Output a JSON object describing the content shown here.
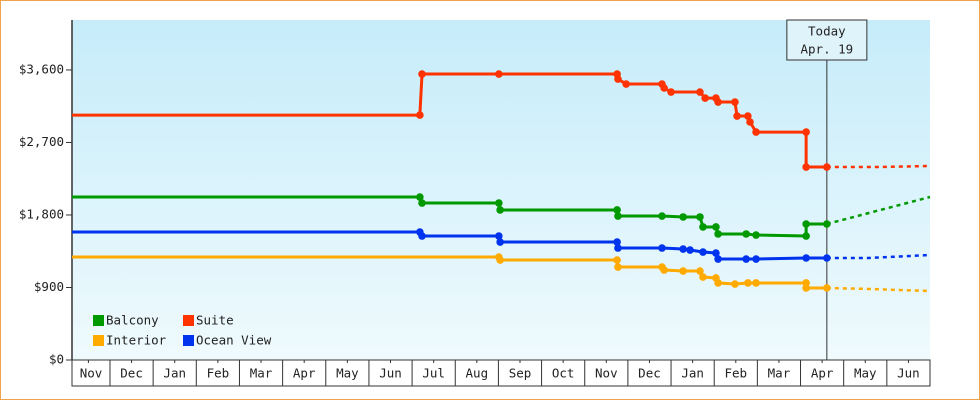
{
  "chart_data": {
    "type": "line",
    "xlim": [
      0.12,
      20
    ],
    "ylim": [
      0,
      4220
    ],
    "yticks": [
      {
        "value": 0,
        "label": "$0"
      },
      {
        "value": 900,
        "label": "$900"
      },
      {
        "value": 1800,
        "label": "$1,800"
      },
      {
        "value": 2700,
        "label": "$2,700"
      },
      {
        "value": 3600,
        "label": "$3,600"
      }
    ],
    "xticks": [
      {
        "value": 0.5,
        "label": "Nov"
      },
      {
        "value": 1.5,
        "label": "Dec"
      },
      {
        "value": 2.5,
        "label": "Jan"
      },
      {
        "value": 3.5,
        "label": "Feb"
      },
      {
        "value": 4.5,
        "label": "Mar"
      },
      {
        "value": 5.5,
        "label": "Apr"
      },
      {
        "value": 6.5,
        "label": "May"
      },
      {
        "value": 7.5,
        "label": "Jun"
      },
      {
        "value": 8.5,
        "label": "Jul"
      },
      {
        "value": 9.5,
        "label": "Aug"
      },
      {
        "value": 10.5,
        "label": "Sep"
      },
      {
        "value": 11.5,
        "label": "Oct"
      },
      {
        "value": 12.5,
        "label": "Nov"
      },
      {
        "value": 13.5,
        "label": "Dec"
      },
      {
        "value": 14.5,
        "label": "Jan"
      },
      {
        "value": 15.5,
        "label": "Feb"
      },
      {
        "value": 16.5,
        "label": "Mar"
      },
      {
        "value": 17.5,
        "label": "Apr"
      },
      {
        "value": 18.5,
        "label": "May"
      },
      {
        "value": 19.5,
        "label": "Jun"
      }
    ],
    "grid": false,
    "annotation": {
      "x": 17.61,
      "lines": [
        "Today",
        "Apr. 19"
      ]
    },
    "series": [
      {
        "name": "Balcony",
        "color": "#009900",
        "x": [
          0.12,
          8.18,
          8.23,
          10.01,
          10.04,
          12.75,
          12.77,
          13.79,
          14.28,
          14.67,
          14.74,
          15.04,
          15.09,
          15.74,
          15.97,
          17.13,
          17.13,
          17.61
        ],
        "values": [
          2023,
          2023,
          1948,
          1948,
          1862,
          1862,
          1787,
          1787,
          1775,
          1775,
          1651,
          1651,
          1564,
          1564,
          1551,
          1539,
          1688,
          1688
        ],
        "forecast": {
          "x": [
            17.61,
            20.0
          ],
          "values": [
            1688,
            2023
          ]
        }
      },
      {
        "name": "Suite",
        "color": "#ff3300",
        "x": [
          0.12,
          8.18,
          8.23,
          10.01,
          12.75,
          12.77,
          12.96,
          13.79,
          13.84,
          14.0,
          14.67,
          14.79,
          15.04,
          15.09,
          15.48,
          15.53,
          15.78,
          15.83,
          15.97,
          17.13,
          17.13,
          17.61
        ],
        "values": [
          3040,
          3040,
          3549,
          3549,
          3549,
          3487,
          3425,
          3425,
          3376,
          3326,
          3326,
          3251,
          3251,
          3202,
          3202,
          3028,
          3028,
          2954,
          2829,
          2829,
          2395,
          2395
        ],
        "forecast": {
          "x": [
            17.61,
            18.77,
            20.0
          ],
          "values": [
            2395,
            2395,
            2408
          ]
        }
      },
      {
        "name": "Interior",
        "color": "#ffaa00",
        "x": [
          0.12,
          10.01,
          10.04,
          12.75,
          12.77,
          13.79,
          13.84,
          14.28,
          14.67,
          14.74,
          15.04,
          15.09,
          15.48,
          15.78,
          15.97,
          17.13,
          17.13,
          17.61
        ],
        "values": [
          1278,
          1278,
          1241,
          1241,
          1154,
          1154,
          1117,
          1104,
          1104,
          1030,
          1018,
          956,
          943,
          956,
          956,
          956,
          894,
          894
        ],
        "forecast": {
          "x": [
            17.61,
            18.57,
            20.0
          ],
          "values": [
            894,
            882,
            856
          ]
        }
      },
      {
        "name": "Ocean View",
        "color": "#0033ee",
        "x": [
          0.12,
          8.18,
          8.23,
          10.01,
          10.04,
          12.75,
          12.77,
          13.79,
          14.28,
          14.44,
          14.74,
          15.04,
          15.09,
          15.74,
          15.97,
          17.13,
          17.61
        ],
        "values": [
          1588,
          1588,
          1539,
          1539,
          1464,
          1464,
          1390,
          1390,
          1377,
          1365,
          1340,
          1328,
          1253,
          1253,
          1253,
          1266,
          1266
        ],
        "forecast": {
          "x": [
            17.61,
            18.57,
            20.0
          ],
          "values": [
            1266,
            1266,
            1303
          ]
        }
      }
    ]
  }
}
